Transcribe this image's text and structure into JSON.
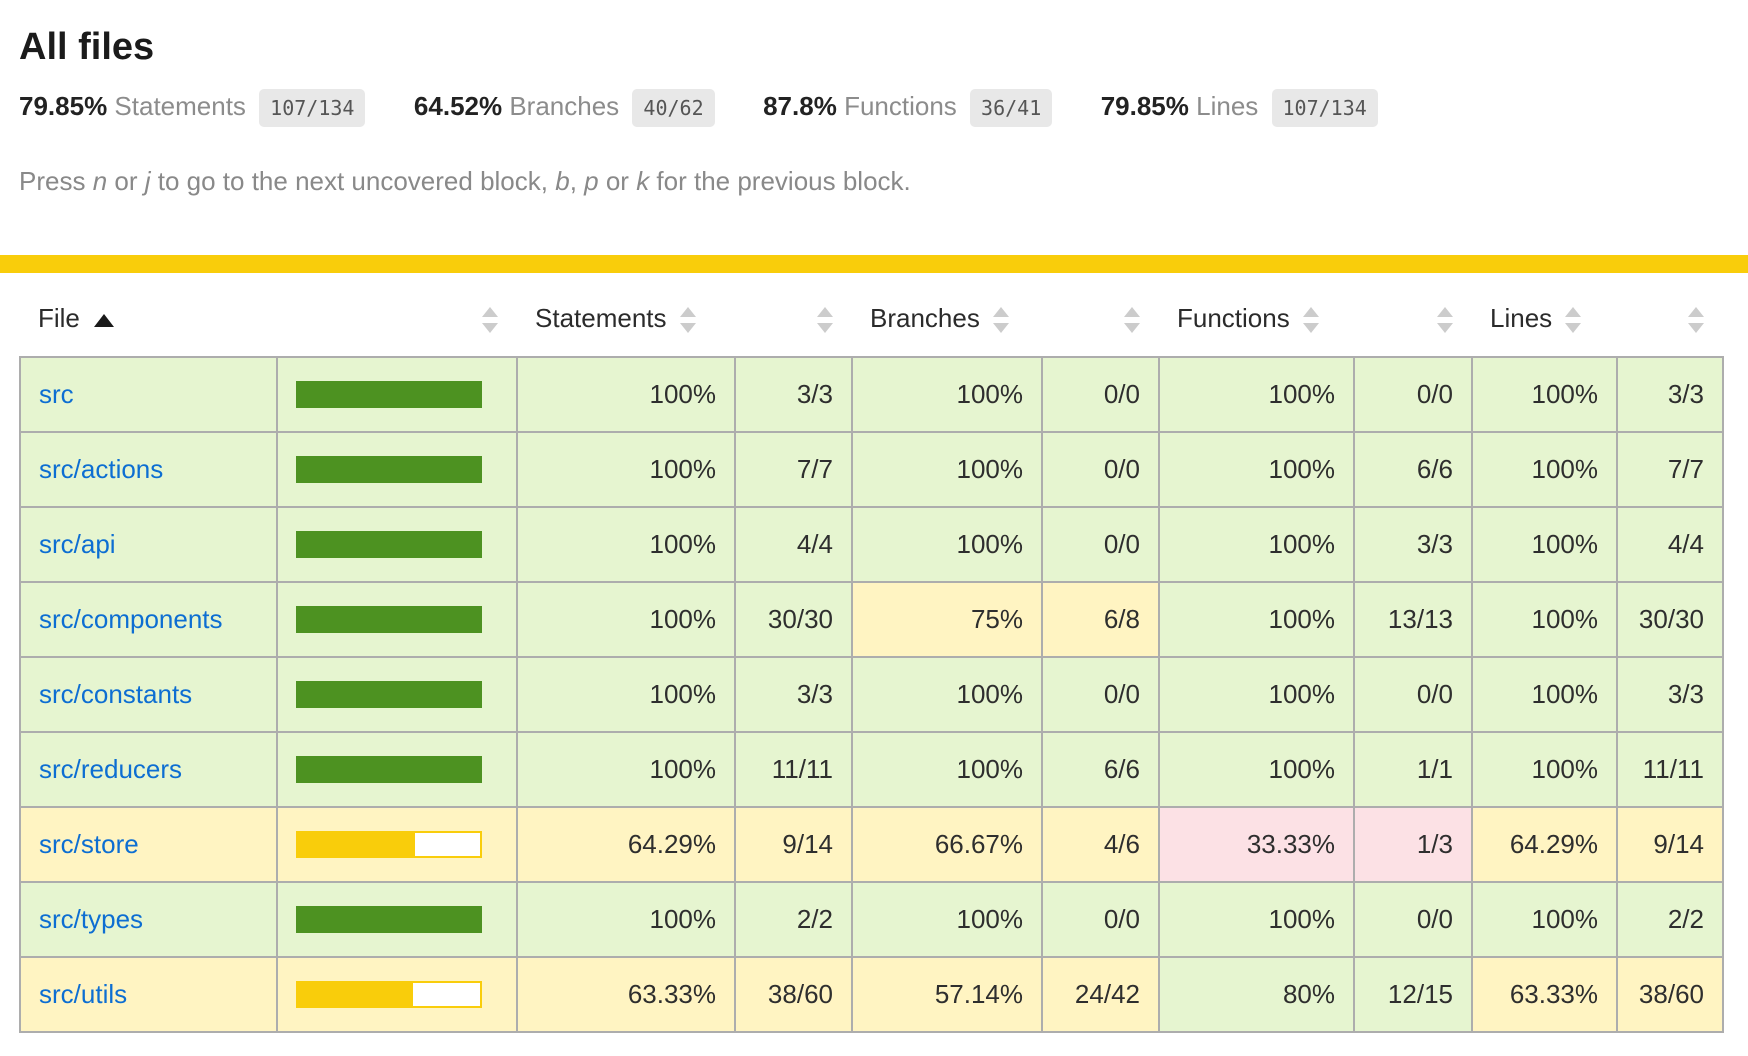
{
  "page": {
    "title": "All files"
  },
  "summary": [
    {
      "pct": "79.85%",
      "label": "Statements",
      "fraction": "107/134"
    },
    {
      "pct": "64.52%",
      "label": "Branches",
      "fraction": "40/62"
    },
    {
      "pct": "87.8%",
      "label": "Functions",
      "fraction": "36/41"
    },
    {
      "pct": "79.85%",
      "label": "Lines",
      "fraction": "107/134"
    }
  ],
  "hint": {
    "p1": "Press ",
    "k1": "n",
    "p2": " or ",
    "k2": "j",
    "p3": " to go to the next uncovered block, ",
    "k3": "b",
    "p4": ", ",
    "k4": "p",
    "p5": " or ",
    "k5": "k",
    "p6": " for the previous block."
  },
  "colors": {
    "status_line": "#f9cd0b",
    "high_bg": "#e6f5d0",
    "medium_bg": "#fff4c2",
    "low_bg": "#fce1e5",
    "bar_high": "#4d9221",
    "bar_medium": "#f9cd0b",
    "link": "#0d6ed2"
  },
  "table": {
    "headers": {
      "file": "File",
      "statements": "Statements",
      "branches": "Branches",
      "functions": "Functions",
      "lines": "Lines"
    },
    "rows": [
      {
        "file": "src",
        "level": "high",
        "bar_pct": 100,
        "statements": {
          "pct": "100%",
          "abs": "3/3",
          "level": "high"
        },
        "branches": {
          "pct": "100%",
          "abs": "0/0",
          "level": "high"
        },
        "functions": {
          "pct": "100%",
          "abs": "0/0",
          "level": "high"
        },
        "lines": {
          "pct": "100%",
          "abs": "3/3",
          "level": "high"
        }
      },
      {
        "file": "src/actions",
        "level": "high",
        "bar_pct": 100,
        "statements": {
          "pct": "100%",
          "abs": "7/7",
          "level": "high"
        },
        "branches": {
          "pct": "100%",
          "abs": "0/0",
          "level": "high"
        },
        "functions": {
          "pct": "100%",
          "abs": "6/6",
          "level": "high"
        },
        "lines": {
          "pct": "100%",
          "abs": "7/7",
          "level": "high"
        }
      },
      {
        "file": "src/api",
        "level": "high",
        "bar_pct": 100,
        "statements": {
          "pct": "100%",
          "abs": "4/4",
          "level": "high"
        },
        "branches": {
          "pct": "100%",
          "abs": "0/0",
          "level": "high"
        },
        "functions": {
          "pct": "100%",
          "abs": "3/3",
          "level": "high"
        },
        "lines": {
          "pct": "100%",
          "abs": "4/4",
          "level": "high"
        }
      },
      {
        "file": "src/components",
        "level": "high",
        "bar_pct": 100,
        "statements": {
          "pct": "100%",
          "abs": "30/30",
          "level": "high"
        },
        "branches": {
          "pct": "75%",
          "abs": "6/8",
          "level": "medium"
        },
        "functions": {
          "pct": "100%",
          "abs": "13/13",
          "level": "high"
        },
        "lines": {
          "pct": "100%",
          "abs": "30/30",
          "level": "high"
        }
      },
      {
        "file": "src/constants",
        "level": "high",
        "bar_pct": 100,
        "statements": {
          "pct": "100%",
          "abs": "3/3",
          "level": "high"
        },
        "branches": {
          "pct": "100%",
          "abs": "0/0",
          "level": "high"
        },
        "functions": {
          "pct": "100%",
          "abs": "0/0",
          "level": "high"
        },
        "lines": {
          "pct": "100%",
          "abs": "3/3",
          "level": "high"
        }
      },
      {
        "file": "src/reducers",
        "level": "high",
        "bar_pct": 100,
        "statements": {
          "pct": "100%",
          "abs": "11/11",
          "level": "high"
        },
        "branches": {
          "pct": "100%",
          "abs": "6/6",
          "level": "high"
        },
        "functions": {
          "pct": "100%",
          "abs": "1/1",
          "level": "high"
        },
        "lines": {
          "pct": "100%",
          "abs": "11/11",
          "level": "high"
        }
      },
      {
        "file": "src/store",
        "level": "medium",
        "bar_pct": 64.29,
        "statements": {
          "pct": "64.29%",
          "abs": "9/14",
          "level": "medium"
        },
        "branches": {
          "pct": "66.67%",
          "abs": "4/6",
          "level": "medium"
        },
        "functions": {
          "pct": "33.33%",
          "abs": "1/3",
          "level": "low"
        },
        "lines": {
          "pct": "64.29%",
          "abs": "9/14",
          "level": "medium"
        }
      },
      {
        "file": "src/types",
        "level": "high",
        "bar_pct": 100,
        "statements": {
          "pct": "100%",
          "abs": "2/2",
          "level": "high"
        },
        "branches": {
          "pct": "100%",
          "abs": "0/0",
          "level": "high"
        },
        "functions": {
          "pct": "100%",
          "abs": "0/0",
          "level": "high"
        },
        "lines": {
          "pct": "100%",
          "abs": "2/2",
          "level": "high"
        }
      },
      {
        "file": "src/utils",
        "level": "medium",
        "bar_pct": 63.33,
        "statements": {
          "pct": "63.33%",
          "abs": "38/60",
          "level": "medium"
        },
        "branches": {
          "pct": "57.14%",
          "abs": "24/42",
          "level": "medium"
        },
        "functions": {
          "pct": "80%",
          "abs": "12/15",
          "level": "high"
        },
        "lines": {
          "pct": "63.33%",
          "abs": "38/60",
          "level": "medium"
        }
      }
    ]
  }
}
